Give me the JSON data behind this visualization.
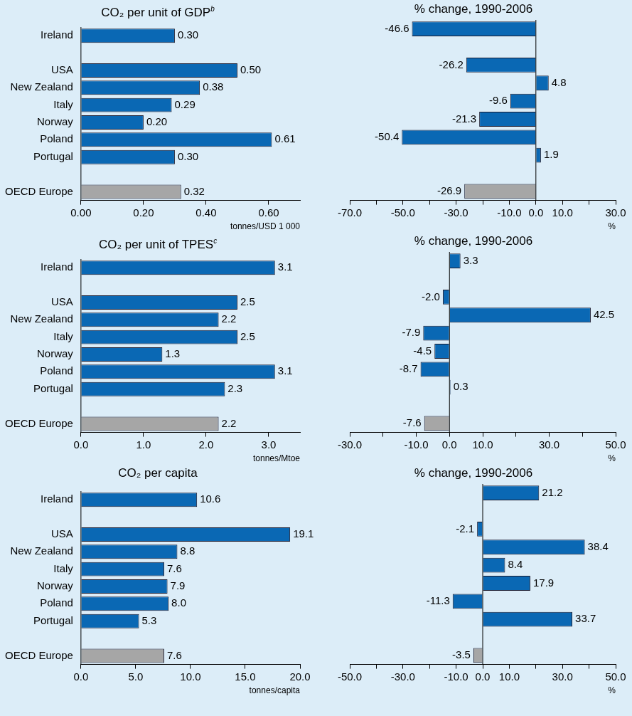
{
  "chart_data": [
    {
      "type": "bar",
      "orientation": "horizontal",
      "title": "CO₂ per unit of GDP$^{b}$",
      "xlabel": "tonnes/USD 1 000",
      "categories": [
        "Ireland",
        null,
        "USA",
        "New Zealand",
        "Italy",
        "Norway",
        "Poland",
        "Portugal",
        null,
        "OECD Europe"
      ],
      "values": [
        0.3,
        null,
        0.5,
        0.38,
        0.29,
        0.2,
        0.61,
        0.3,
        null,
        0.32
      ],
      "value_labels": [
        "0.30",
        null,
        "0.50",
        "0.38",
        "0.29",
        "0.20",
        "0.61",
        "0.30",
        null,
        "0.32"
      ],
      "colors": [
        "#0a68b4",
        "#0a68b4",
        "#0a68b4",
        "#0a68b4",
        "#0a68b4",
        "#0a68b4",
        "#0a68b4",
        "#0a68b4",
        "#0a68b4",
        "#a6a6a6"
      ],
      "xlim": [
        0,
        0.7
      ],
      "xticks": [
        {
          "value": 0,
          "label": "0.00"
        },
        {
          "value": 0.2,
          "label": "0.20"
        },
        {
          "value": 0.4,
          "label": "0.40"
        },
        {
          "value": 0.6,
          "label": "0.60"
        }
      ]
    },
    {
      "type": "bar",
      "orientation": "horizontal",
      "title": "% change, 1990-2006",
      "xlabel": "%",
      "tick_labels": "x",
      "categories": [
        null,
        null,
        null,
        null,
        null,
        null,
        null,
        null,
        null,
        null
      ],
      "values": [
        -46.6,
        null,
        -26.2,
        4.8,
        -9.6,
        -21.3,
        -50.4,
        1.9,
        null,
        -26.9
      ],
      "value_labels": [
        "-46.6",
        null,
        "-26.2",
        "4.8",
        "-9.6",
        "-21.3",
        "-50.4",
        "1.9",
        null,
        "-26.9"
      ],
      "colors": [
        "#0a68b4",
        "#0a68b4",
        "#0a68b4",
        "#0a68b4",
        "#0a68b4",
        "#0a68b4",
        "#0a68b4",
        "#0a68b4",
        "#0a68b4",
        "#a6a6a6"
      ],
      "xlim": [
        -70,
        30
      ],
      "xticks": [
        {
          "value": -70,
          "label": "-70.0"
        },
        {
          "value": -60,
          "label": null
        },
        {
          "value": -50,
          "label": "-50.0"
        },
        {
          "value": -40,
          "label": null
        },
        {
          "value": -30,
          "label": "-30.0"
        },
        {
          "value": -20,
          "label": null
        },
        {
          "value": -10,
          "label": "-10.0"
        },
        {
          "value": 0,
          "label": "0.0"
        },
        {
          "value": 10,
          "label": "10.0"
        },
        {
          "value": 20,
          "label": null
        },
        {
          "value": 30,
          "label": "30.0"
        }
      ]
    },
    {
      "type": "bar",
      "orientation": "horizontal",
      "title": "CO₂ per unit of TPES$^{c}$",
      "xlabel": "tonnes/Mtoe",
      "categories": [
        "Ireland",
        null,
        "USA",
        "New Zealand",
        "Italy",
        "Norway",
        "Poland",
        "Portugal",
        null,
        "OECD Europe"
      ],
      "values": [
        3.1,
        null,
        2.5,
        2.2,
        2.5,
        1.3,
        3.1,
        2.3,
        null,
        2.2
      ],
      "value_labels": [
        "3.1",
        null,
        "2.5",
        "2.2",
        "2.5",
        "1.3",
        "3.1",
        "2.3",
        null,
        "2.2"
      ],
      "colors": [
        "#0a68b4",
        "#0a68b4",
        "#0a68b4",
        "#0a68b4",
        "#0a68b4",
        "#0a68b4",
        "#0a68b4",
        "#0a68b4",
        "#0a68b4",
        "#a6a6a6"
      ],
      "xlim": [
        0,
        3.5
      ],
      "xticks": [
        {
          "value": 0,
          "label": "0.0"
        },
        {
          "value": 1,
          "label": "1.0"
        },
        {
          "value": 2,
          "label": "2.0"
        },
        {
          "value": 3,
          "label": "3.0"
        }
      ]
    },
    {
      "type": "bar",
      "orientation": "horizontal",
      "title": "% change, 1990-2006",
      "xlabel": "%",
      "tick_labels": "x",
      "categories": [
        null,
        null,
        null,
        null,
        null,
        null,
        null,
        null,
        null,
        null
      ],
      "values": [
        3.3,
        null,
        -2.0,
        42.5,
        -7.9,
        -4.5,
        -8.7,
        0.3,
        null,
        -7.6
      ],
      "value_labels": [
        "3.3",
        null,
        "-2.0",
        "42.5",
        "-7.9",
        "-4.5",
        "-8.7",
        "0.3",
        null,
        "-7.6"
      ],
      "colors": [
        "#0a68b4",
        "#0a68b4",
        "#0a68b4",
        "#0a68b4",
        "#0a68b4",
        "#0a68b4",
        "#0a68b4",
        "#0a68b4",
        "#0a68b4",
        "#a6a6a6"
      ],
      "xlim": [
        -30,
        50
      ],
      "xticks": [
        {
          "value": -30,
          "label": "-30.0"
        },
        {
          "value": -20,
          "label": null
        },
        {
          "value": -10,
          "label": "-10.0"
        },
        {
          "value": 0,
          "label": "0.0"
        },
        {
          "value": 10,
          "label": "10.0"
        },
        {
          "value": 20,
          "label": null
        },
        {
          "value": 30,
          "label": "30.0"
        },
        {
          "value": 40,
          "label": null
        },
        {
          "value": 50,
          "label": "50.0"
        }
      ]
    },
    {
      "type": "bar",
      "orientation": "horizontal",
      "title": "CO₂ per capita",
      "xlabel": "tonnes/capita",
      "categories": [
        "Ireland",
        null,
        "USA",
        "New Zealand",
        "Italy",
        "Norway",
        "Poland",
        "Portugal",
        null,
        "OECD Europe"
      ],
      "values": [
        10.6,
        null,
        19.1,
        8.8,
        7.6,
        7.9,
        8.0,
        5.3,
        null,
        7.6
      ],
      "value_labels": [
        "10.6",
        null,
        "19.1",
        "8.8",
        "7.6",
        "7.9",
        "8.0",
        "5.3",
        null,
        "7.6"
      ],
      "colors": [
        "#0a68b4",
        "#0a68b4",
        "#0a68b4",
        "#0a68b4",
        "#0a68b4",
        "#0a68b4",
        "#0a68b4",
        "#0a68b4",
        "#0a68b4",
        "#a6a6a6"
      ],
      "xlim": [
        0,
        20
      ],
      "xticks": [
        {
          "value": 0,
          "label": "0.0"
        },
        {
          "value": 5,
          "label": "5.0"
        },
        {
          "value": 10,
          "label": "10.0"
        },
        {
          "value": 15,
          "label": "15.0"
        },
        {
          "value": 20,
          "label": "20.0"
        }
      ]
    },
    {
      "type": "bar",
      "orientation": "horizontal",
      "title": "% change, 1990-2006",
      "xlabel": "%",
      "tick_labels": "x",
      "categories": [
        null,
        null,
        null,
        null,
        null,
        null,
        null,
        null,
        null,
        null
      ],
      "values": [
        21.2,
        null,
        -2.1,
        38.4,
        8.4,
        17.9,
        -11.3,
        33.7,
        null,
        -3.5
      ],
      "value_labels": [
        "21.2",
        null,
        "-2.1",
        "38.4",
        "8.4",
        "17.9",
        "-11.3",
        "33.7",
        null,
        "-3.5"
      ],
      "colors": [
        "#0a68b4",
        "#0a68b4",
        "#0a68b4",
        "#0a68b4",
        "#0a68b4",
        "#0a68b4",
        "#0a68b4",
        "#0a68b4",
        "#0a68b4",
        "#a6a6a6"
      ],
      "xlim": [
        -50,
        50
      ],
      "xticks": [
        {
          "value": -50,
          "label": "-50.0"
        },
        {
          "value": -40,
          "label": null
        },
        {
          "value": -30,
          "label": "-30.0"
        },
        {
          "value": -20,
          "label": null
        },
        {
          "value": -10,
          "label": "-10.0"
        },
        {
          "value": 0,
          "label": "0.0"
        },
        {
          "value": 10,
          "label": "10.0"
        },
        {
          "value": 20,
          "label": null
        },
        {
          "value": 30,
          "label": "30.0"
        },
        {
          "value": 40,
          "label": null
        },
        {
          "value": 50,
          "label": "50.0"
        }
      ]
    }
  ]
}
